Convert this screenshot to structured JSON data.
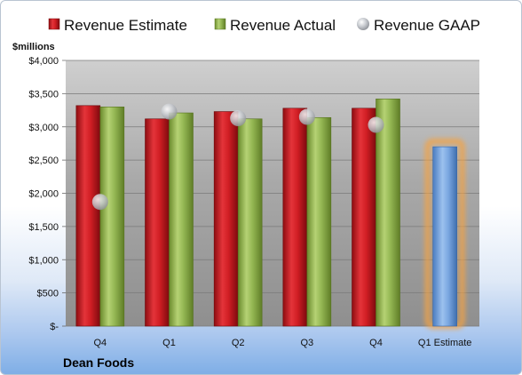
{
  "chart_data": {
    "type": "bar",
    "ylabel": "$millions",
    "categories": [
      "Q4",
      "Q1",
      "Q2",
      "Q3",
      "Q4",
      "Q1 Estimate"
    ],
    "yticks": [
      "$-",
      "$500",
      "$1,000",
      "$1,500",
      "$2,000",
      "$2,500",
      "$3,000",
      "$3,500",
      "$4,000"
    ],
    "ylim": [
      0,
      4000
    ],
    "legend_position": "top",
    "grid": true,
    "series": [
      {
        "name": "Revenue Estimate",
        "color": "#c8151b",
        "values": [
          3320,
          3120,
          3230,
          3280,
          3280,
          null
        ]
      },
      {
        "name": "Revenue Actual",
        "color": "#8fb04b",
        "values": [
          3300,
          3210,
          3120,
          3140,
          3420,
          null
        ]
      },
      {
        "name": "Revenue GAAP",
        "color": "#b8bcc2",
        "type": "scatter",
        "values": [
          1870,
          3230,
          3130,
          3150,
          3030,
          null
        ]
      }
    ],
    "estimate_bar": {
      "category": "Q1 Estimate",
      "value": 2700,
      "color": "#6f9fdc",
      "glow": "#f5a343"
    }
  },
  "company": "Dean Foods"
}
